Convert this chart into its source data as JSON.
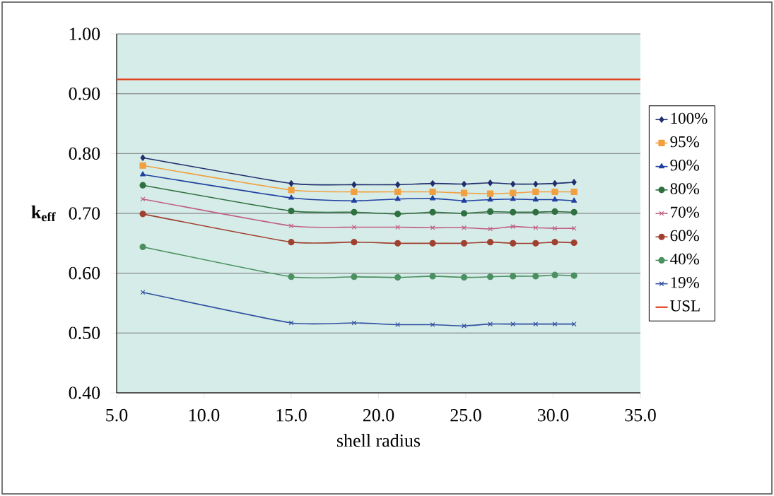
{
  "chart_data": {
    "type": "line",
    "xlabel": "shell radius",
    "ylabel": "k$_{eff}$",
    "xlim": [
      5,
      35
    ],
    "ylim": [
      0.4,
      1.0
    ],
    "xticks": [
      {
        "value": 5,
        "label": "5.0"
      },
      {
        "value": 10,
        "label": "10.0"
      },
      {
        "value": 15,
        "label": "15.0"
      },
      {
        "value": 20,
        "label": "20.0"
      },
      {
        "value": 25,
        "label": "25.0"
      },
      {
        "value": 30,
        "label": "30.0"
      },
      {
        "value": 35,
        "label": "35.0"
      }
    ],
    "yticks": [
      {
        "value": 0.4,
        "label": "0.40"
      },
      {
        "value": 0.5,
        "label": "0.50"
      },
      {
        "value": 0.6,
        "label": "0.60"
      },
      {
        "value": 0.7,
        "label": "0.70"
      },
      {
        "value": 0.8,
        "label": "0.80"
      },
      {
        "value": 0.9,
        "label": "0.90"
      },
      {
        "value": 1.0,
        "label": "1.00"
      }
    ],
    "grid": "y",
    "legend": "right",
    "x": [
      6.5,
      15.0,
      18.6,
      21.1,
      23.1,
      24.9,
      26.4,
      27.7,
      29.0,
      30.1,
      31.2
    ],
    "series": [
      {
        "name": "100%",
        "color": "#1f2f6e",
        "marker": "diamond",
        "values": [
          0.793,
          0.75,
          0.748,
          0.748,
          0.75,
          0.749,
          0.751,
          0.749,
          0.749,
          0.75,
          0.752
        ]
      },
      {
        "name": "95%",
        "color": "#f0a040",
        "marker": "square",
        "values": [
          0.78,
          0.739,
          0.736,
          0.736,
          0.736,
          0.734,
          0.733,
          0.734,
          0.736,
          0.736,
          0.736
        ]
      },
      {
        "name": "90%",
        "color": "#2040a0",
        "marker": "triangle",
        "values": [
          0.765,
          0.726,
          0.721,
          0.724,
          0.725,
          0.721,
          0.723,
          0.724,
          0.723,
          0.723,
          0.721
        ]
      },
      {
        "name": "80%",
        "color": "#2e7040",
        "marker": "circle",
        "values": [
          0.747,
          0.704,
          0.702,
          0.699,
          0.702,
          0.7,
          0.703,
          0.702,
          0.702,
          0.703,
          0.702
        ]
      },
      {
        "name": "70%",
        "color": "#c06080",
        "marker": "cross",
        "values": [
          0.724,
          0.679,
          0.677,
          0.677,
          0.676,
          0.676,
          0.674,
          0.678,
          0.676,
          0.675,
          0.675
        ]
      },
      {
        "name": "60%",
        "color": "#a04030",
        "marker": "circle",
        "values": [
          0.699,
          0.652,
          0.652,
          0.65,
          0.65,
          0.65,
          0.652,
          0.65,
          0.65,
          0.652,
          0.651
        ]
      },
      {
        "name": "40%",
        "color": "#4a9060",
        "marker": "circle",
        "values": [
          0.644,
          0.594,
          0.594,
          0.593,
          0.595,
          0.593,
          0.594,
          0.595,
          0.595,
          0.597,
          0.596
        ]
      },
      {
        "name": "19%",
        "color": "#3050a0",
        "marker": "cross",
        "values": [
          0.568,
          0.517,
          0.517,
          0.514,
          0.514,
          0.512,
          0.515,
          0.515,
          0.515,
          0.515,
          0.515
        ]
      },
      {
        "name": "USL",
        "color": "#e04020",
        "marker": "none",
        "x": [
          5,
          35
        ],
        "values": [
          0.924,
          0.924
        ]
      }
    ]
  }
}
